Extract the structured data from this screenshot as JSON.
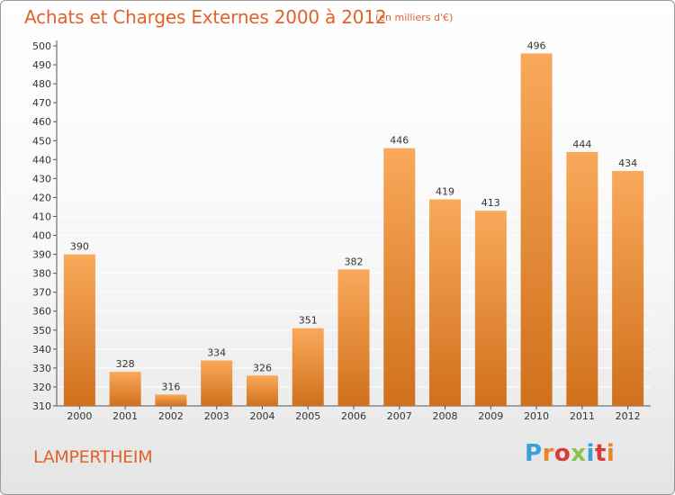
{
  "title": "Achats et Charges Externes 2000 à 2012",
  "subtitle": "(en milliers d'€)",
  "footer_label": "LAMPERTHEIM",
  "logo": {
    "text": "Proxiti",
    "letter_colors": [
      "#3aa0d8",
      "#e8842a",
      "#d33c3c",
      "#8bc34a",
      "#3aa0d8",
      "#d33c3c",
      "#e8842a"
    ]
  },
  "colors": {
    "bar_top": "#f9a95a",
    "bar_bottom": "#d0701c",
    "title": "#e0622a",
    "grid": "#ffffff"
  },
  "chart_data": {
    "type": "bar",
    "categories": [
      "2000",
      "2001",
      "2002",
      "2003",
      "2004",
      "2005",
      "2006",
      "2007",
      "2008",
      "2009",
      "2010",
      "2011",
      "2012"
    ],
    "values": [
      390,
      328,
      316,
      334,
      326,
      351,
      382,
      446,
      419,
      413,
      496,
      444,
      434
    ],
    "ylim": [
      310,
      500
    ],
    "yticks": [
      310,
      320,
      330,
      340,
      350,
      360,
      370,
      380,
      390,
      400,
      410,
      420,
      430,
      440,
      450,
      460,
      470,
      480,
      490,
      500
    ],
    "grid": true,
    "data_labels": true
  }
}
